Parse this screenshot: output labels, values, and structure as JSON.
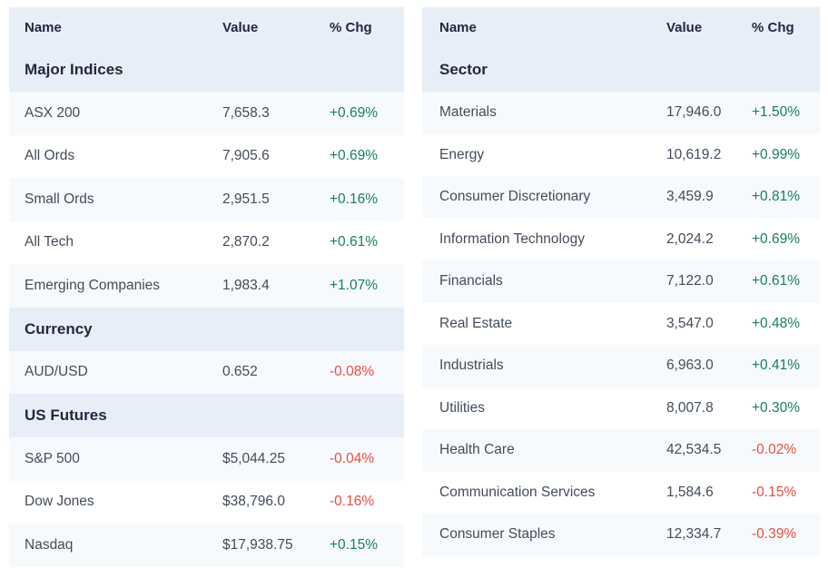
{
  "colors": {
    "section_bg": "#e8eef7",
    "tint_row_bg": "#f7fafc",
    "header_text": "#1d2940",
    "body_text": "#424c5b",
    "positive": "#15805c",
    "negative": "#f04a41"
  },
  "tables": [
    {
      "name": "markets-overview",
      "header": {
        "name": "Name",
        "value": "Value",
        "chg": "% Chg"
      },
      "rows": [
        {
          "type": "section",
          "label": "Major Indices"
        },
        {
          "type": "data",
          "name": "ASX 200",
          "value": "7,658.3",
          "chg": "+0.69%",
          "dir": "up"
        },
        {
          "type": "data",
          "name": "All Ords",
          "value": "7,905.6",
          "chg": "+0.69%",
          "dir": "up"
        },
        {
          "type": "data",
          "name": "Small Ords",
          "value": "2,951.5",
          "chg": "+0.16%",
          "dir": "up"
        },
        {
          "type": "data",
          "name": "All Tech",
          "value": "2,870.2",
          "chg": "+0.61%",
          "dir": "up"
        },
        {
          "type": "data",
          "name": "Emerging Companies",
          "value": "1,983.4",
          "chg": "+1.07%",
          "dir": "up"
        },
        {
          "type": "section",
          "label": "Currency"
        },
        {
          "type": "data",
          "name": "AUD/USD",
          "value": "0.652",
          "chg": "-0.08%",
          "dir": "down"
        },
        {
          "type": "section",
          "label": "US Futures"
        },
        {
          "type": "data",
          "name": "S&P 500",
          "value": "$5,044.25",
          "chg": "-0.04%",
          "dir": "down"
        },
        {
          "type": "data",
          "name": "Dow Jones",
          "value": "$38,796.0",
          "chg": "-0.16%",
          "dir": "down"
        },
        {
          "type": "data",
          "name": "Nasdaq",
          "value": "$17,938.75",
          "chg": "+0.15%",
          "dir": "up"
        }
      ]
    },
    {
      "name": "sectors",
      "header": {
        "name": "Name",
        "value": "Value",
        "chg": "% Chg"
      },
      "rows": [
        {
          "type": "section",
          "label": "Sector"
        },
        {
          "type": "data",
          "name": "Materials",
          "value": "17,946.0",
          "chg": "+1.50%",
          "dir": "up"
        },
        {
          "type": "data",
          "name": "Energy",
          "value": "10,619.2",
          "chg": "+0.99%",
          "dir": "up"
        },
        {
          "type": "data",
          "name": "Consumer Discretionary",
          "value": "3,459.9",
          "chg": "+0.81%",
          "dir": "up"
        },
        {
          "type": "data",
          "name": "Information Technology",
          "value": "2,024.2",
          "chg": "+0.69%",
          "dir": "up"
        },
        {
          "type": "data",
          "name": "Financials",
          "value": "7,122.0",
          "chg": "+0.61%",
          "dir": "up"
        },
        {
          "type": "data",
          "name": "Real Estate",
          "value": "3,547.0",
          "chg": "+0.48%",
          "dir": "up"
        },
        {
          "type": "data",
          "name": "Industrials",
          "value": "6,963.0",
          "chg": "+0.41%",
          "dir": "up"
        },
        {
          "type": "data",
          "name": "Utilities",
          "value": "8,007.8",
          "chg": "+0.30%",
          "dir": "up"
        },
        {
          "type": "data",
          "name": "Health Care",
          "value": "42,534.5",
          "chg": "-0.02%",
          "dir": "down"
        },
        {
          "type": "data",
          "name": "Communication Services",
          "value": "1,584.6",
          "chg": "-0.15%",
          "dir": "down"
        },
        {
          "type": "data",
          "name": "Consumer Staples",
          "value": "12,334.7",
          "chg": "-0.39%",
          "dir": "down"
        }
      ]
    }
  ]
}
